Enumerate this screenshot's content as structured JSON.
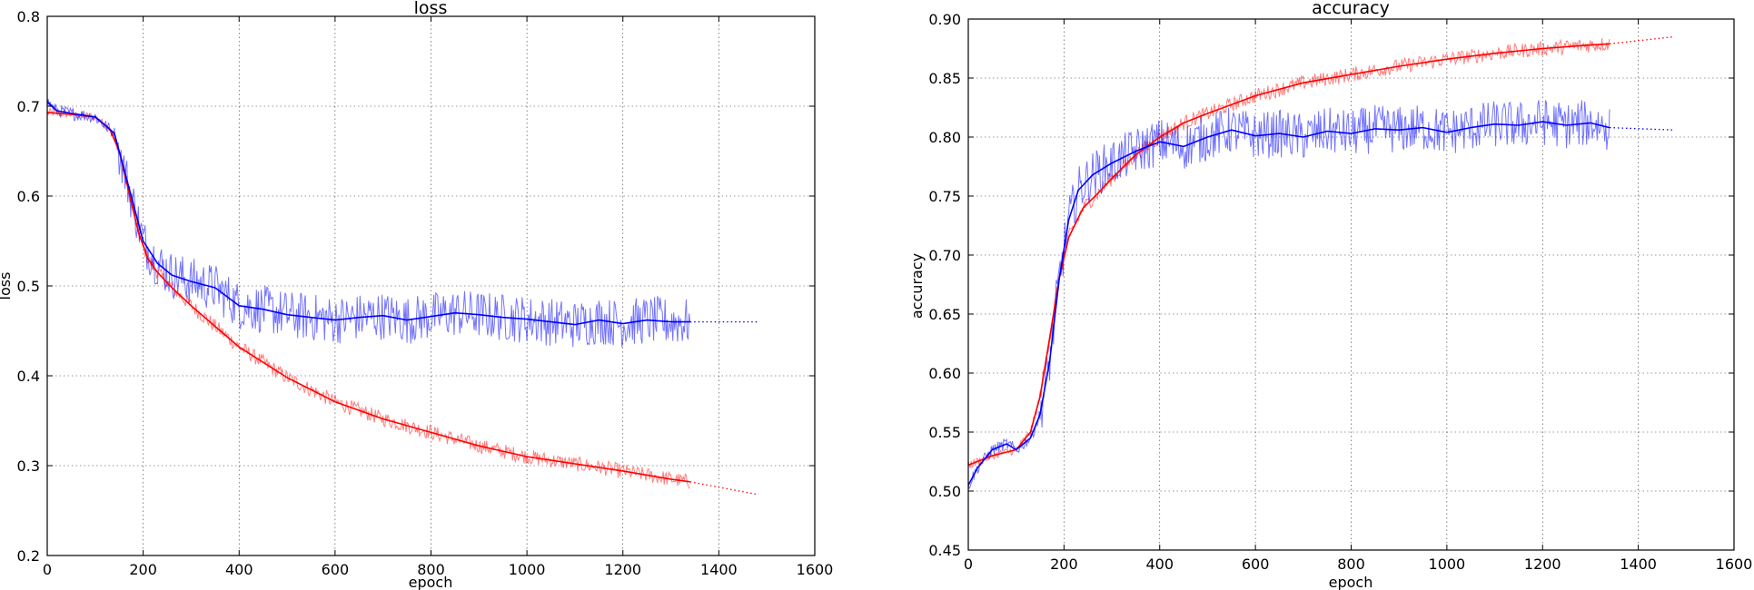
{
  "figure": {
    "background": "#ffffff"
  },
  "chart_data": [
    {
      "type": "line",
      "title": "loss",
      "xlabel": "epoch",
      "ylabel": "loss",
      "xlim": [
        0,
        1600
      ],
      "ylim": [
        0.2,
        0.8
      ],
      "xticks": [
        0,
        200,
        400,
        600,
        800,
        1000,
        1200,
        1400,
        1600
      ],
      "yticks": [
        0.2,
        0.3,
        0.4,
        0.5,
        0.6,
        0.7,
        0.8
      ],
      "grid": true,
      "legend": "none",
      "series": [
        {
          "color": "#ff0000",
          "style": "smoothed",
          "x": [
            0,
            50,
            100,
            130,
            150,
            170,
            190,
            210,
            230,
            260,
            300,
            350,
            400,
            500,
            600,
            700,
            800,
            900,
            1000,
            1100,
            1200,
            1300,
            1340
          ],
          "y": [
            0.693,
            0.691,
            0.688,
            0.675,
            0.65,
            0.605,
            0.56,
            0.53,
            0.515,
            0.498,
            0.478,
            0.455,
            0.432,
            0.398,
            0.371,
            0.352,
            0.337,
            0.322,
            0.31,
            0.302,
            0.294,
            0.285,
            0.282
          ]
        },
        {
          "color": "#0000ff",
          "style": "smoothed",
          "x": [
            0,
            20,
            50,
            100,
            140,
            160,
            180,
            200,
            230,
            260,
            300,
            350,
            400,
            450,
            500,
            550,
            600,
            650,
            700,
            750,
            800,
            850,
            900,
            950,
            1000,
            1050,
            1100,
            1150,
            1200,
            1250,
            1300,
            1340
          ],
          "y": [
            0.705,
            0.695,
            0.692,
            0.688,
            0.67,
            0.63,
            0.59,
            0.55,
            0.525,
            0.512,
            0.505,
            0.498,
            0.478,
            0.474,
            0.468,
            0.465,
            0.462,
            0.465,
            0.467,
            0.462,
            0.466,
            0.47,
            0.468,
            0.465,
            0.463,
            0.46,
            0.457,
            0.462,
            0.458,
            0.462,
            0.46,
            0.46
          ]
        },
        {
          "color": "#ff0000",
          "style": "dotted",
          "x": [
            1340,
            1480
          ],
          "y": [
            0.282,
            0.268
          ]
        },
        {
          "color": "#0000ff",
          "style": "dotted",
          "x": [
            1340,
            1480
          ],
          "y": [
            0.46,
            0.46
          ]
        }
      ]
    },
    {
      "type": "line",
      "title": "accuracy",
      "xlabel": "epoch",
      "ylabel": "accuracy",
      "xlim": [
        0,
        1600
      ],
      "ylim": [
        0.45,
        0.9
      ],
      "xticks": [
        0,
        200,
        400,
        600,
        800,
        1000,
        1200,
        1400,
        1600
      ],
      "yticks": [
        0.45,
        0.5,
        0.55,
        0.6,
        0.65,
        0.7,
        0.75,
        0.8,
        0.85,
        0.9
      ],
      "grid": true,
      "legend": "none",
      "series": [
        {
          "color": "#ff0000",
          "style": "smoothed",
          "x": [
            0,
            50,
            100,
            130,
            150,
            170,
            190,
            210,
            240,
            270,
            300,
            350,
            400,
            450,
            500,
            600,
            700,
            800,
            900,
            1000,
            1100,
            1200,
            1300,
            1340
          ],
          "y": [
            0.522,
            0.53,
            0.535,
            0.55,
            0.58,
            0.63,
            0.68,
            0.715,
            0.74,
            0.752,
            0.765,
            0.785,
            0.8,
            0.812,
            0.82,
            0.835,
            0.846,
            0.853,
            0.86,
            0.866,
            0.871,
            0.875,
            0.878,
            0.879
          ]
        },
        {
          "color": "#0000ff",
          "style": "smoothed",
          "x": [
            0,
            20,
            50,
            80,
            100,
            130,
            150,
            170,
            190,
            210,
            230,
            260,
            300,
            350,
            400,
            450,
            500,
            550,
            600,
            650,
            700,
            750,
            800,
            850,
            900,
            950,
            1000,
            1050,
            1100,
            1150,
            1200,
            1250,
            1300,
            1340
          ],
          "y": [
            0.505,
            0.52,
            0.535,
            0.54,
            0.535,
            0.545,
            0.565,
            0.61,
            0.68,
            0.73,
            0.755,
            0.768,
            0.778,
            0.788,
            0.796,
            0.792,
            0.8,
            0.806,
            0.801,
            0.803,
            0.8,
            0.805,
            0.803,
            0.807,
            0.806,
            0.808,
            0.804,
            0.808,
            0.811,
            0.81,
            0.813,
            0.81,
            0.812,
            0.808
          ]
        },
        {
          "color": "#ff0000",
          "style": "dotted",
          "x": [
            1340,
            1475
          ],
          "y": [
            0.879,
            0.885
          ]
        },
        {
          "color": "#0000ff",
          "style": "dotted",
          "x": [
            1340,
            1475
          ],
          "y": [
            0.808,
            0.806
          ]
        }
      ]
    }
  ]
}
